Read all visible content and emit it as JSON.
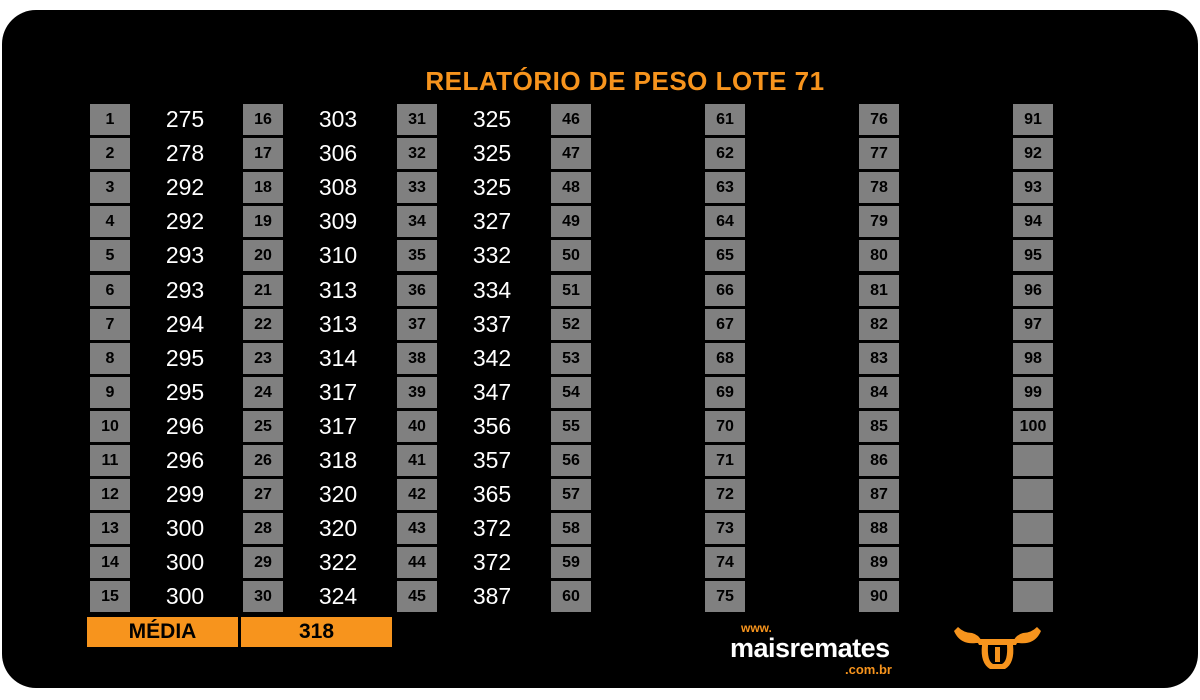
{
  "report": {
    "title": "RELATÓRIO DE PESO LOTE  71",
    "media_label": "MÉDIA",
    "media_value": "318"
  },
  "columns": [
    {
      "numbers": [
        "1",
        "2",
        "3",
        "4",
        "5",
        "6",
        "7",
        "8",
        "9",
        "10",
        "11",
        "12",
        "13",
        "14",
        "15"
      ],
      "values": [
        "275",
        "278",
        "292",
        "292",
        "293",
        "293",
        "294",
        "295",
        "295",
        "296",
        "296",
        "299",
        "300",
        "300",
        "300"
      ]
    },
    {
      "numbers": [
        "16",
        "17",
        "18",
        "19",
        "20",
        "21",
        "22",
        "23",
        "24",
        "25",
        "26",
        "27",
        "28",
        "29",
        "30"
      ],
      "values": [
        "303",
        "306",
        "308",
        "309",
        "310",
        "313",
        "313",
        "314",
        "317",
        "317",
        "318",
        "320",
        "320",
        "322",
        "324"
      ]
    },
    {
      "numbers": [
        "31",
        "32",
        "33",
        "34",
        "35",
        "36",
        "37",
        "38",
        "39",
        "40",
        "41",
        "42",
        "43",
        "44",
        "45"
      ],
      "values": [
        "325",
        "325",
        "325",
        "327",
        "332",
        "334",
        "337",
        "342",
        "347",
        "356",
        "357",
        "365",
        "372",
        "372",
        "387"
      ]
    },
    {
      "numbers": [
        "46",
        "47",
        "48",
        "49",
        "50",
        "51",
        "52",
        "53",
        "54",
        "55",
        "56",
        "57",
        "58",
        "59",
        "60"
      ],
      "values": [
        "",
        "",
        "",
        "",
        "",
        "",
        "",
        "",
        "",
        "",
        "",
        "",
        "",
        "",
        ""
      ]
    },
    {
      "numbers": [
        "61",
        "62",
        "63",
        "64",
        "65",
        "66",
        "67",
        "68",
        "69",
        "70",
        "71",
        "72",
        "73",
        "74",
        "75"
      ],
      "values": [
        "",
        "",
        "",
        "",
        "",
        "",
        "",
        "",
        "",
        "",
        "",
        "",
        "",
        "",
        ""
      ]
    },
    {
      "numbers": [
        "76",
        "77",
        "78",
        "79",
        "80",
        "81",
        "82",
        "83",
        "84",
        "85",
        "86",
        "87",
        "88",
        "89",
        "90"
      ],
      "values": [
        "",
        "",
        "",
        "",
        "",
        "",
        "",
        "",
        "",
        "",
        "",
        "",
        "",
        "",
        ""
      ]
    },
    {
      "numbers": [
        "91",
        "92",
        "93",
        "94",
        "95",
        "96",
        "97",
        "98",
        "99",
        "100",
        "",
        "",
        "",
        "",
        ""
      ],
      "values": [
        "",
        "",
        "",
        "",
        "",
        "",
        "",
        "",
        "",
        "",
        "",
        "",
        "",
        "",
        ""
      ]
    }
  ],
  "brand": {
    "www": "www.",
    "name": "maisremates",
    "domain": ".com.br",
    "logo_icon": "bull-horns-icon",
    "accent_color": "#f7941d"
  }
}
